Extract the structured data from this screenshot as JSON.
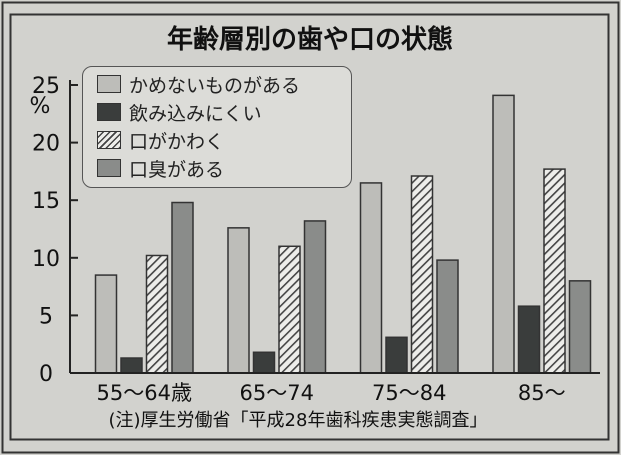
{
  "chart_data": {
    "type": "bar",
    "title": "年齢層別の歯や口の状態",
    "unit_label": "%",
    "categories": [
      "55～64歳",
      "65～74",
      "75～84",
      "85～"
    ],
    "series": [
      {
        "name": "かめないものがある",
        "values": [
          8.5,
          12.6,
          16.5,
          24.1
        ],
        "color": "#bdbdb9",
        "pattern": "solid"
      },
      {
        "name": "飲み込みにくい",
        "values": [
          1.3,
          1.8,
          3.1,
          5.8
        ],
        "color": "#3a3d3c",
        "pattern": "solid"
      },
      {
        "name": "口がかわく",
        "values": [
          10.2,
          11.0,
          17.1,
          17.7
        ],
        "color": "#ededea",
        "pattern": "hatch"
      },
      {
        "name": "口臭がある",
        "values": [
          14.8,
          13.2,
          9.8,
          8.0
        ],
        "color": "#8a8c8a",
        "pattern": "solid"
      }
    ],
    "ylim": [
      0,
      25
    ],
    "yticks": [
      0,
      5,
      10,
      15,
      20,
      25
    ],
    "grid": false,
    "legend_position": "top-left",
    "note": "(注)厚生労働省「平成28年歯科疾患実態調査」"
  }
}
